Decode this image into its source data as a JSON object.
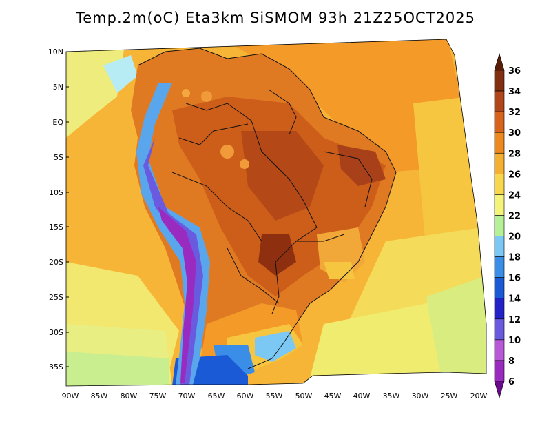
{
  "title": "Temp.2m(oC) Eta3km SiSMOM 93h 21Z25OCT2025",
  "lat_labels": [
    "10N",
    "5N",
    "EQ",
    "5S",
    "10S",
    "15S",
    "20S",
    "25S",
    "30S",
    "35S"
  ],
  "lon_labels": [
    "90W",
    "85W",
    "80W",
    "75W",
    "70W",
    "65W",
    "60W",
    "55W",
    "50W",
    "45W",
    "40W",
    "35W",
    "30W",
    "25W",
    "20W"
  ],
  "colorbar": {
    "labels": [
      "6",
      "8",
      "10",
      "12",
      "14",
      "16",
      "18",
      "20",
      "22",
      "24",
      "26",
      "28",
      "30",
      "32",
      "34",
      "36"
    ],
    "colors": [
      "#6a0a8c",
      "#9a2bc0",
      "#b85ad8",
      "#6a5ae0",
      "#2222c8",
      "#1a5ad6",
      "#3a8ee8",
      "#7cc8f4",
      "#b4f096",
      "#f4f47a",
      "#f8d84a",
      "#f4b030",
      "#ec8a20",
      "#d8641c",
      "#b0461a",
      "#80300e",
      "#5a1e08"
    ]
  }
}
